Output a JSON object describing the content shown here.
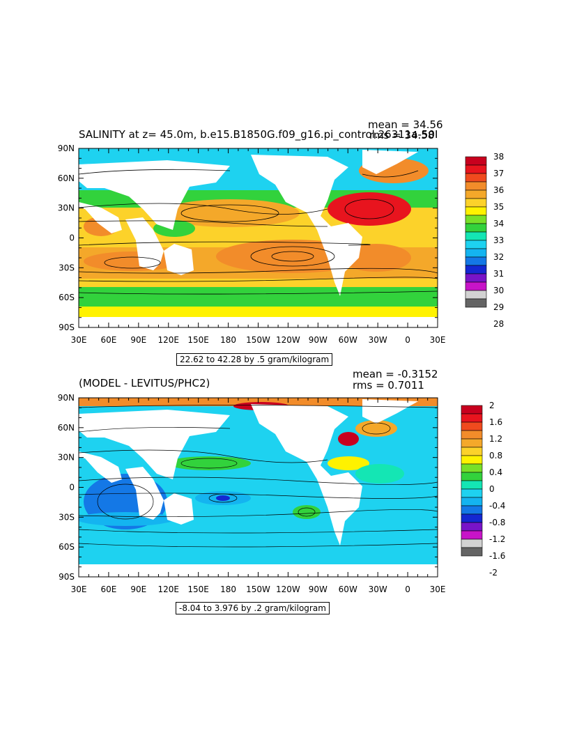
{
  "panels": [
    {
      "title": "SALINITY at z=  45.0m, b.e15.B1850G.f09_g16.pi_control.26311a-50I",
      "mean_label": "mean = 34.56",
      "rms_label": "rms = 34.58",
      "range_label": "22.62 to 42.28 by .5 gram/kilogram",
      "lat_ticks": [
        "90N",
        "60N",
        "30N",
        "0",
        "30S",
        "60S",
        "90S"
      ],
      "lon_ticks": [
        "30E",
        "60E",
        "90E",
        "120E",
        "150E",
        "180",
        "150W",
        "120W",
        "90W",
        "60W",
        "30W",
        "0",
        "30E"
      ],
      "colorbar_labels": [
        "38",
        "37",
        "36",
        "35",
        "34",
        "33",
        "32",
        "31",
        "30",
        "29",
        "28"
      ],
      "colorbar_colors": [
        "#c8001e",
        "#e8141e",
        "#f04a1e",
        "#f28c2a",
        "#f4a82a",
        "#fcd22a",
        "#fff200",
        "#78e028",
        "#32d23c",
        "#14e6b4",
        "#1ed2f0",
        "#14b4f0",
        "#1478e6",
        "#1428d2",
        "#7814c8",
        "#c814c8",
        "#d2d2d2",
        "#646464"
      ]
    },
    {
      "title": "(MODEL - LEVITUS/PHC2)",
      "mean_label": "mean = -0.3152",
      "rms_label": "rms = 0.7011",
      "range_label": "-8.04 to 3.976 by .2 gram/kilogram",
      "lat_ticks": [
        "90N",
        "60N",
        "30N",
        "0",
        "30S",
        "60S",
        "90S"
      ],
      "lon_ticks": [
        "30E",
        "60E",
        "90E",
        "120E",
        "150E",
        "180",
        "150W",
        "120W",
        "90W",
        "60W",
        "30W",
        "0",
        "30E"
      ],
      "colorbar_labels": [
        "2",
        "1.6",
        "1.2",
        "0.8",
        "0.4",
        "0",
        "-0.4",
        "-0.8",
        "-1.2",
        "-1.6",
        "-2"
      ],
      "colorbar_colors": [
        "#c8001e",
        "#e8141e",
        "#f04a1e",
        "#f28c2a",
        "#f4a82a",
        "#fcd22a",
        "#fff200",
        "#78e028",
        "#32d23c",
        "#14e6b4",
        "#1ed2f0",
        "#14b4f0",
        "#1478e6",
        "#1428d2",
        "#7814c8",
        "#c814c8",
        "#d2d2d2",
        "#646464"
      ]
    }
  ]
}
